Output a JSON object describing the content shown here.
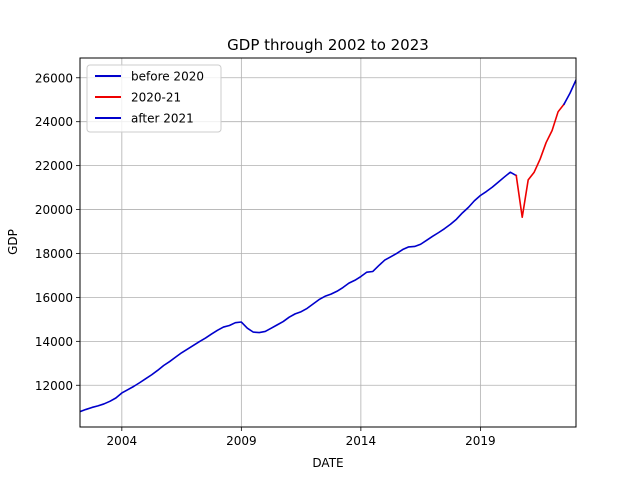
{
  "chart_data": {
    "type": "line",
    "title": "GDP through 2002 to 2023",
    "xlabel": "DATE",
    "ylabel": "GDP",
    "xlim": [
      2002.25,
      2023.0
    ],
    "ylim": [
      10100,
      26900
    ],
    "x_ticks": [
      {
        "value": 2004,
        "label": "2004"
      },
      {
        "value": 2009,
        "label": "2009"
      },
      {
        "value": 2014,
        "label": "2014"
      },
      {
        "value": 2019,
        "label": "2019"
      }
    ],
    "y_ticks": [
      {
        "value": 12000,
        "label": "12000"
      },
      {
        "value": 14000,
        "label": "14000"
      },
      {
        "value": 16000,
        "label": "16000"
      },
      {
        "value": 18000,
        "label": "18000"
      },
      {
        "value": 20000,
        "label": "20000"
      },
      {
        "value": 22000,
        "label": "22000"
      },
      {
        "value": 24000,
        "label": "24000"
      },
      {
        "value": 26000,
        "label": "26000"
      }
    ],
    "grid": true,
    "legend_position": "top-left",
    "series": [
      {
        "name": "before 2020",
        "color": "#0000cc",
        "points": [
          [
            2002.25,
            10800
          ],
          [
            2002.5,
            10900
          ],
          [
            2002.75,
            10990
          ],
          [
            2003.0,
            11060
          ],
          [
            2003.25,
            11150
          ],
          [
            2003.5,
            11270
          ],
          [
            2003.75,
            11420
          ],
          [
            2004.0,
            11650
          ],
          [
            2004.25,
            11800
          ],
          [
            2004.5,
            11950
          ],
          [
            2004.75,
            12120
          ],
          [
            2005.0,
            12300
          ],
          [
            2005.25,
            12480
          ],
          [
            2005.5,
            12680
          ],
          [
            2005.75,
            12900
          ],
          [
            2006.0,
            13080
          ],
          [
            2006.25,
            13280
          ],
          [
            2006.5,
            13480
          ],
          [
            2006.75,
            13650
          ],
          [
            2007.0,
            13820
          ],
          [
            2007.25,
            13990
          ],
          [
            2007.5,
            14150
          ],
          [
            2007.75,
            14330
          ],
          [
            2008.0,
            14500
          ],
          [
            2008.25,
            14650
          ],
          [
            2008.5,
            14720
          ],
          [
            2008.75,
            14850
          ],
          [
            2009.0,
            14880
          ],
          [
            2009.25,
            14600
          ],
          [
            2009.5,
            14420
          ],
          [
            2009.75,
            14400
          ],
          [
            2010.0,
            14450
          ],
          [
            2010.25,
            14600
          ],
          [
            2010.5,
            14750
          ],
          [
            2010.75,
            14900
          ],
          [
            2011.0,
            15100
          ],
          [
            2011.25,
            15250
          ],
          [
            2011.5,
            15350
          ],
          [
            2011.75,
            15500
          ],
          [
            2012.0,
            15700
          ],
          [
            2012.25,
            15900
          ],
          [
            2012.5,
            16050
          ],
          [
            2012.75,
            16150
          ],
          [
            2013.0,
            16280
          ],
          [
            2013.25,
            16450
          ],
          [
            2013.5,
            16650
          ],
          [
            2013.75,
            16780
          ],
          [
            2014.0,
            16950
          ],
          [
            2014.25,
            17150
          ],
          [
            2014.5,
            17180
          ],
          [
            2014.75,
            17450
          ],
          [
            2015.0,
            17700
          ],
          [
            2015.25,
            17850
          ],
          [
            2015.5,
            18000
          ],
          [
            2015.75,
            18180
          ],
          [
            2016.0,
            18300
          ],
          [
            2016.25,
            18320
          ],
          [
            2016.5,
            18420
          ],
          [
            2016.75,
            18600
          ],
          [
            2017.0,
            18780
          ],
          [
            2017.25,
            18950
          ],
          [
            2017.5,
            19130
          ],
          [
            2017.75,
            19330
          ],
          [
            2018.0,
            19560
          ],
          [
            2018.25,
            19850
          ],
          [
            2018.5,
            20100
          ],
          [
            2018.75,
            20400
          ],
          [
            2019.0,
            20640
          ],
          [
            2019.25,
            20820
          ],
          [
            2019.5,
            21020
          ],
          [
            2019.75,
            21250
          ],
          [
            2020.0,
            21480
          ],
          [
            2020.25,
            21700
          ],
          [
            2020.5,
            21550
          ]
        ]
      },
      {
        "name": "2020-21",
        "color": "#ee0000",
        "points": [
          [
            2020.5,
            21550
          ],
          [
            2020.75,
            19650
          ],
          [
            2021.0,
            21350
          ],
          [
            2021.25,
            21700
          ],
          [
            2021.5,
            22300
          ],
          [
            2021.75,
            23050
          ],
          [
            2022.0,
            23600
          ],
          [
            2022.25,
            24450
          ],
          [
            2022.5,
            24800
          ]
        ]
      },
      {
        "name": "after 2021",
        "color": "#0000cc",
        "points": [
          [
            2022.5,
            24800
          ],
          [
            2022.75,
            25300
          ],
          [
            2023.0,
            25900
          ],
          [
            2023.25,
            26400
          ]
        ]
      }
    ]
  }
}
